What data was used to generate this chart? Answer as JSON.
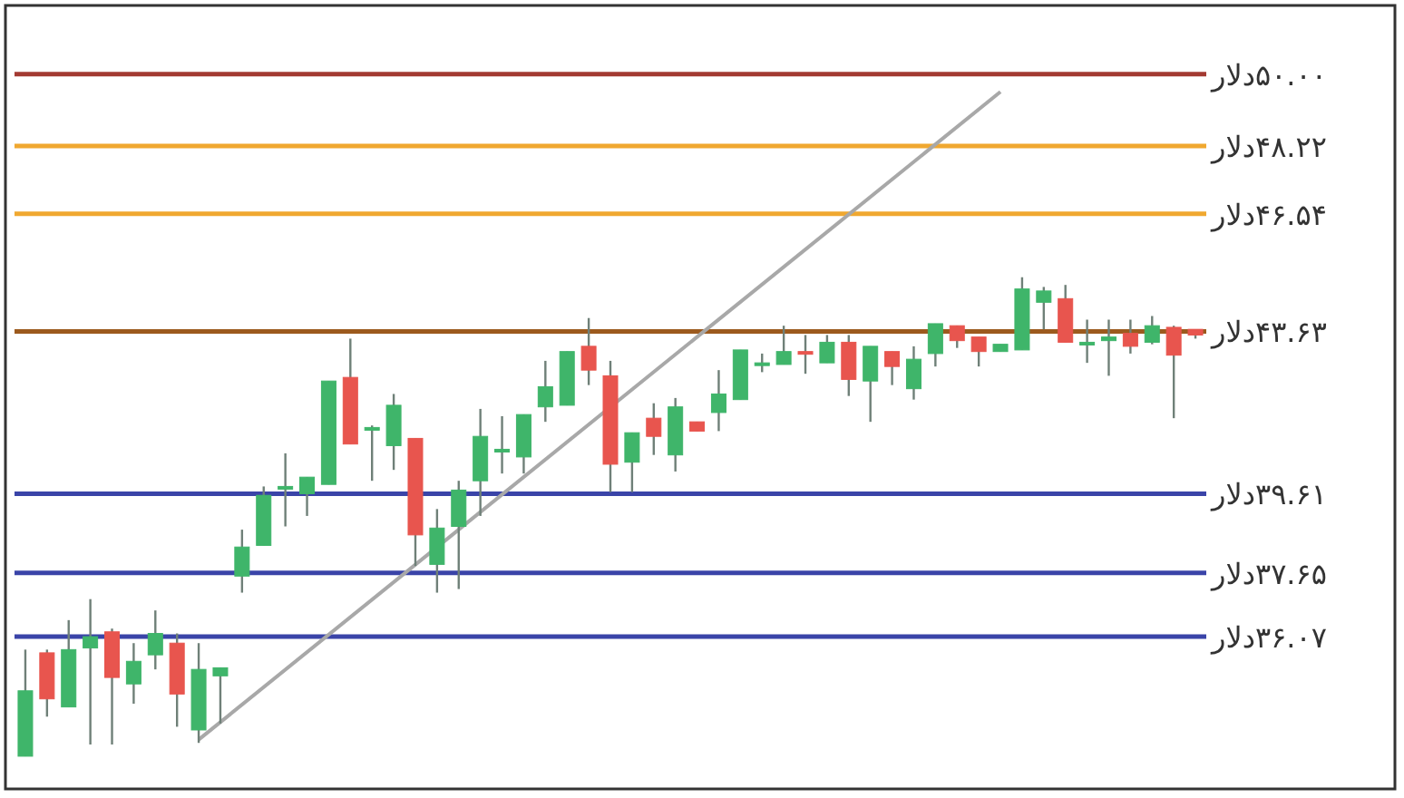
{
  "chart_data": {
    "type": "candlestick",
    "categories": [
      null,
      null,
      null,
      null,
      null,
      null,
      null,
      null,
      null,
      null,
      null,
      null,
      null,
      null,
      null,
      null,
      null,
      null,
      null,
      null,
      null,
      null,
      null,
      null,
      null,
      null,
      null,
      null,
      null,
      null,
      null,
      null,
      null,
      null,
      null,
      null,
      null,
      null,
      null,
      null,
      null,
      null,
      null,
      null,
      null,
      null,
      null,
      null,
      null,
      null,
      null,
      null,
      null,
      null,
      null
    ],
    "ohlc": [
      [
        33.11,
        35.75,
        33.11,
        34.73
      ],
      [
        35.67,
        35.75,
        34.09,
        34.53
      ],
      [
        34.33,
        36.48,
        34.33,
        35.75
      ],
      [
        35.79,
        37.0,
        33.4,
        36.07
      ],
      [
        36.19,
        36.27,
        33.4,
        35.06
      ],
      [
        34.9,
        35.91,
        34.41,
        35.46
      ],
      [
        35.62,
        36.72,
        35.26,
        36.15
      ],
      [
        35.91,
        36.15,
        33.84,
        34.65
      ],
      [
        33.76,
        35.91,
        33.44,
        35.26
      ],
      [
        35.1,
        35.3,
        33.92,
        35.3
      ],
      [
        37.57,
        38.72,
        37.16,
        38.29
      ],
      [
        38.33,
        39.79,
        38.33,
        39.57
      ],
      [
        39.75,
        40.61,
        38.8,
        39.79
      ],
      [
        39.61,
        40.02,
        39.06,
        40.02
      ],
      [
        39.84,
        42.4,
        39.84,
        42.4
      ],
      [
        42.49,
        43.45,
        40.84,
        40.84
      ],
      [
        41.21,
        41.3,
        39.93,
        41.25
      ],
      [
        40.8,
        42.08,
        40.2,
        41.8
      ],
      [
        40.98,
        40.98,
        37.82,
        38.59
      ],
      [
        37.86,
        39.23,
        37.16,
        38.76
      ],
      [
        38.8,
        39.93,
        37.25,
        39.7
      ],
      [
        39.93,
        41.71,
        39.06,
        41.03
      ],
      [
        40.66,
        41.53,
        40.11,
        40.71
      ],
      [
        40.52,
        41.57,
        40.11,
        41.57
      ],
      [
        41.76,
        42.9,
        41.39,
        42.26
      ],
      [
        41.8,
        43.13,
        41.8,
        43.13
      ],
      [
        43.26,
        43.96,
        42.3,
        42.67
      ],
      [
        42.53,
        42.9,
        39.65,
        40.34
      ],
      [
        40.39,
        41.12,
        39.65,
        41.12
      ],
      [
        41.48,
        41.85,
        40.57,
        41.03
      ],
      [
        40.57,
        41.98,
        40.16,
        41.76
      ],
      [
        41.39,
        41.39,
        41.16,
        41.16
      ],
      [
        41.62,
        42.67,
        41.16,
        42.08
      ],
      [
        41.94,
        43.17,
        41.94,
        43.17
      ],
      [
        42.81,
        43.08,
        42.62,
        42.85
      ],
      [
        42.81,
        43.77,
        42.81,
        43.13
      ],
      [
        43.13,
        43.54,
        42.58,
        43.08
      ],
      [
        42.85,
        43.54,
        42.85,
        43.36
      ],
      [
        43.36,
        43.54,
        42.03,
        42.44
      ],
      [
        42.4,
        43.26,
        41.39,
        43.26
      ],
      [
        43.13,
        43.13,
        42.3,
        42.76
      ],
      [
        42.21,
        43.26,
        41.94,
        42.94
      ],
      [
        43.08,
        43.82,
        42.76,
        43.82
      ],
      [
        43.77,
        43.77,
        43.22,
        43.4
      ],
      [
        43.49,
        43.49,
        42.76,
        43.13
      ],
      [
        43.13,
        43.31,
        43.13,
        43.31
      ],
      [
        43.17,
        44.97,
        43.17,
        44.68
      ],
      [
        44.35,
        44.73,
        43.68,
        44.63
      ],
      [
        44.44,
        44.78,
        43.36,
        43.36
      ],
      [
        43.31,
        43.92,
        42.85,
        43.36
      ],
      [
        43.4,
        43.92,
        42.53,
        43.49
      ],
      [
        43.58,
        43.92,
        43.08,
        43.26
      ],
      [
        43.36,
        44.01,
        43.31,
        43.77
      ],
      [
        43.73,
        43.77,
        41.48,
        43.04
      ],
      [
        43.68,
        43.68,
        43.45,
        43.54
      ]
    ],
    "colors": [
      "#3fb56a",
      "#e8554e",
      "#3fb56a",
      "#3fb56a",
      "#e8554e",
      "#3fb56a",
      "#3fb56a",
      "#e8554e",
      "#3fb56a",
      "#3fb56a",
      "#3fb56a",
      "#3fb56a",
      "#3fb56a",
      "#3fb56a",
      "#3fb56a",
      "#e8554e",
      "#3fb56a",
      "#3fb56a",
      "#e8554e",
      "#3fb56a",
      "#3fb56a",
      "#3fb56a",
      "#3fb56a",
      "#3fb56a",
      "#3fb56a",
      "#3fb56a",
      "#e8554e",
      "#e8554e",
      "#3fb56a",
      "#e8554e",
      "#3fb56a",
      "#e8554e",
      "#3fb56a",
      "#3fb56a",
      "#3fb56a",
      "#3fb56a",
      "#e8554e",
      "#3fb56a",
      "#e8554e",
      "#3fb56a",
      "#e8554e",
      "#3fb56a",
      "#3fb56a",
      "#e8554e",
      "#e8554e",
      "#3fb56a",
      "#3fb56a",
      "#3fb56a",
      "#e8554e",
      "#3fb56a",
      "#3fb56a",
      "#e8554e",
      "#3fb56a",
      "#e8554e",
      "#e8554e"
    ],
    "series": [
      {
        "type": "line",
        "values": [
          null,
          null,
          null,
          null,
          null,
          null,
          null,
          null,
          33.52,
          null,
          null,
          null,
          null,
          null,
          null,
          null,
          null,
          null,
          null,
          null,
          null,
          null,
          null,
          null,
          null,
          null,
          null,
          null,
          null,
          null,
          null,
          null,
          null,
          null,
          null,
          null,
          null,
          null,
          null,
          null,
          null,
          null,
          null,
          null,
          null,
          49.56,
          null,
          null,
          null,
          null,
          null,
          null,
          null,
          null,
          null
        ],
        "color": "#a8a8a8"
      }
    ],
    "ylim": [
      32.3,
      51.7
    ],
    "yticks": [
      {
        "value": 50.0,
        "label": "۵۰.۰۰دلار"
      },
      {
        "value": 48.22,
        "label": "۴۸.۲۲دلار"
      },
      {
        "value": 46.54,
        "label": "۴۶.۵۴دلار"
      },
      {
        "value": 43.63,
        "label": "۴۳.۶۳دلار"
      },
      {
        "value": 39.61,
        "label": "۳۹.۶۱دلار"
      },
      {
        "value": 37.65,
        "label": "۳۷.۶۵دلار"
      },
      {
        "value": 36.07,
        "label": "۳۶.۰۷دلار"
      }
    ],
    "ref_lines": [
      {
        "axis": "y",
        "value": 50.0,
        "color": "#a33a32"
      },
      {
        "axis": "y",
        "value": 48.22,
        "color": "#f0a830"
      },
      {
        "axis": "y",
        "value": 46.54,
        "color": "#f0a830"
      },
      {
        "axis": "y",
        "value": 43.63,
        "color": "#9c5a1e"
      },
      {
        "axis": "y",
        "value": 39.61,
        "color": "#3a44a8"
      },
      {
        "axis": "y",
        "value": 37.65,
        "color": "#3a44a8"
      },
      {
        "axis": "y",
        "value": 36.07,
        "color": "#3a44a8"
      }
    ]
  }
}
